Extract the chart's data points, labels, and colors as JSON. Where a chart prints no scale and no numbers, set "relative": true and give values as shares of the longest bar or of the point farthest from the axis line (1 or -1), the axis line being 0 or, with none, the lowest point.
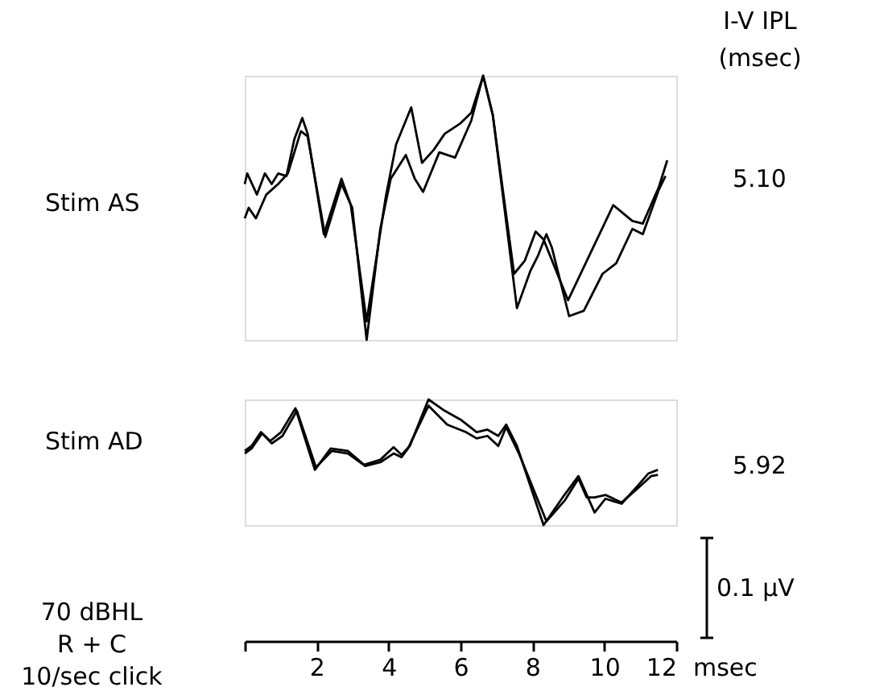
{
  "chart_data": [
    {
      "type": "line",
      "relative": true,
      "xlim": [
        0,
        12
      ],
      "tick_labels": false,
      "grid": false,
      "legend": false,
      "marker": "none",
      "line_style": "solid",
      "annotations": [
        "Stim AS",
        "5.10",
        "I-V  IPL",
        "(msec)"
      ],
      "series": [
        {
          "color": "#000000",
          "x": [
            0,
            0.07,
            0.34,
            0.56,
            0.75,
            0.93,
            1.16,
            1.38,
            1.6,
            1.75,
            2.2,
            2.69,
            2.95,
            3.39,
            3.92,
            4.21,
            4.63,
            4.93,
            5.26,
            5.56,
            6.0,
            6.3,
            6.63,
            6.9,
            7.49,
            7.79,
            8.09,
            8.31,
            8.99,
            10.25,
            10.78,
            11.07,
            11.52,
            11.75
          ],
          "values": [
            0.59,
            0.63,
            0.55,
            0.63,
            0.59,
            0.63,
            0.62,
            0.76,
            0.84,
            0.78,
            0.4,
            0.61,
            0.51,
            0.07,
            0.54,
            0.74,
            0.88,
            0.67,
            0.72,
            0.78,
            0.82,
            0.86,
            1.0,
            0.85,
            0.25,
            0.3,
            0.41,
            0.38,
            0.15,
            0.51,
            0.45,
            0.44,
            0.58,
            0.68
          ]
        },
        {
          "color": "#000000",
          "x": [
            0,
            0.11,
            0.31,
            0.6,
            0.93,
            1.2,
            1.56,
            1.75,
            2.24,
            2.69,
            2.99,
            3.39,
            3.77,
            4.06,
            4.48,
            4.73,
            4.96,
            5.41,
            5.85,
            6.3,
            6.63,
            6.9,
            7.57,
            7.94,
            8.16,
            8.39,
            8.54,
            9.02,
            9.43,
            9.95,
            10.33,
            10.78,
            11.07,
            11.52,
            11.7
          ],
          "values": [
            0.46,
            0.5,
            0.46,
            0.55,
            0.59,
            0.63,
            0.79,
            0.77,
            0.39,
            0.59,
            0.5,
            0.0,
            0.42,
            0.61,
            0.7,
            0.61,
            0.56,
            0.71,
            0.69,
            0.83,
            1.0,
            0.85,
            0.12,
            0.26,
            0.32,
            0.4,
            0.35,
            0.09,
            0.11,
            0.25,
            0.29,
            0.42,
            0.4,
            0.57,
            0.62
          ]
        }
      ]
    },
    {
      "type": "line",
      "relative": true,
      "xlim": [
        0,
        12
      ],
      "xticks": [
        {
          "value": 0,
          "label": null
        },
        2,
        4,
        6,
        8,
        10,
        12
      ],
      "xlabel": "msec",
      "tick_labels": "x",
      "grid": false,
      "legend": false,
      "marker": "none",
      "line_style": "solid",
      "annotations": [
        "Stim AD",
        "5.92",
        "0.1 µV",
        "70 dBHL",
        "R + C",
        "10/sec click"
      ],
      "series": [
        {
          "color": "#000000",
          "x": [
            0,
            0.19,
            0.45,
            0.71,
            1.01,
            1.41,
            1.95,
            2.39,
            2.87,
            3.32,
            3.77,
            4.14,
            4.36,
            4.59,
            5.11,
            5.56,
            6.0,
            6.45,
            6.75,
            7.05,
            7.27,
            7.57,
            8.31,
            8.84,
            9.28,
            9.73,
            10.03,
            10.48,
            10.92,
            11.22,
            11.49
          ],
          "values": [
            0.59,
            0.63,
            0.74,
            0.67,
            0.74,
            0.93,
            0.44,
            0.61,
            0.59,
            0.48,
            0.52,
            0.62,
            0.56,
            0.63,
            1.0,
            0.91,
            0.84,
            0.74,
            0.76,
            0.71,
            0.8,
            0.63,
            0.0,
            0.22,
            0.39,
            0.1,
            0.21,
            0.17,
            0.31,
            0.41,
            0.44
          ]
        },
        {
          "color": "#000000",
          "x": [
            0,
            0.19,
            0.48,
            0.75,
            1.05,
            1.45,
            1.98,
            2.42,
            2.87,
            3.35,
            3.77,
            4.14,
            4.36,
            4.54,
            5.11,
            5.63,
            6.15,
            6.45,
            6.75,
            7.05,
            7.27,
            7.64,
            8.39,
            8.91,
            9.28,
            9.51,
            9.73,
            10.03,
            10.48,
            10.92,
            11.3,
            11.49
          ],
          "values": [
            0.57,
            0.61,
            0.73,
            0.65,
            0.71,
            0.91,
            0.46,
            0.59,
            0.57,
            0.47,
            0.5,
            0.57,
            0.54,
            0.61,
            0.95,
            0.8,
            0.74,
            0.69,
            0.71,
            0.63,
            0.78,
            0.56,
            0.03,
            0.2,
            0.37,
            0.22,
            0.22,
            0.24,
            0.18,
            0.29,
            0.39,
            0.4
          ]
        }
      ]
    }
  ]
}
